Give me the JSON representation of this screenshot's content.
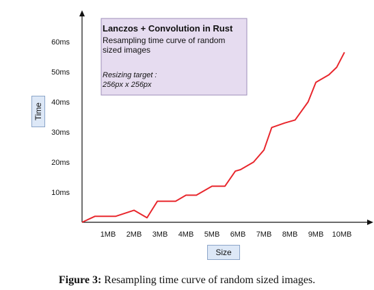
{
  "chart_data": {
    "type": "line",
    "title": "Lanczos + Convolution in Rust",
    "subtitle": "Resampling time curve of random sized images",
    "annotation": "Resizing target : 256px x 256px",
    "annotation_label": "Resizing target :",
    "annotation_value": "256px x 256px",
    "xlabel": "Size",
    "ylabel": "Time",
    "x_ticks": [
      "1MB",
      "2MB",
      "3MB",
      "4MB",
      "5MB",
      "6MB",
      "7MB",
      "8MB",
      "9MB",
      "10MB"
    ],
    "y_ticks": [
      "10ms",
      "20ms",
      "30ms",
      "40ms",
      "50ms",
      "60ms"
    ],
    "x_unit": "MB",
    "y_unit": "ms",
    "xlim": [
      0,
      10.5
    ],
    "ylim": [
      0,
      64
    ],
    "series": [
      {
        "color": "#e8262c",
        "x": [
          0,
          0.5,
          1.1,
          1.3,
          2.0,
          2.5,
          2.9,
          3.6,
          4.0,
          4.4,
          5.0,
          5.5,
          5.9,
          6.1,
          6.6,
          7.0,
          7.3,
          7.8,
          8.2,
          8.7,
          9.0,
          9.5,
          9.8,
          10.1
        ],
        "y": [
          0,
          2,
          2,
          2,
          4,
          1.5,
          7,
          7,
          9,
          9,
          12,
          12,
          17,
          17.5,
          20,
          24,
          31.5,
          33,
          34,
          40,
          46.5,
          49,
          51.5,
          56.5
        ]
      }
    ],
    "box_color": "#e6dcf0",
    "grid": false
  },
  "caption": {
    "label": "Figure 3:",
    "text": " Resampling time curve of random sized images."
  }
}
